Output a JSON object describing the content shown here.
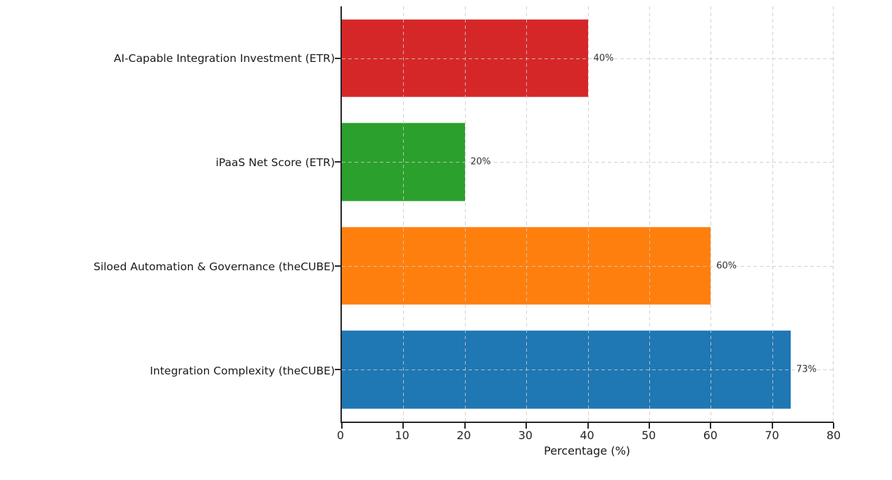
{
  "chart_data": {
    "type": "bar",
    "orientation": "horizontal",
    "title": "",
    "xlabel": "Percentage (%)",
    "ylabel": "",
    "xlim": [
      0,
      80
    ],
    "xticks": [
      0,
      10,
      20,
      30,
      40,
      50,
      60,
      70,
      80
    ],
    "grid": {
      "visible": true,
      "style": "dashed",
      "color": "#cccccc",
      "drawn_above_bars": true
    },
    "legend": null,
    "categories": [
      "AI-Capable Integration Investment (ETR)",
      "iPaaS Net Score (ETR)",
      "Siloed Automation & Governance (theCUBE)",
      "Integration Complexity (theCUBE)"
    ],
    "values": [
      40,
      20,
      60,
      73
    ],
    "bars": [
      {
        "category": "AI-Capable Integration Investment (ETR)",
        "value": 40,
        "label": "40%",
        "color": "#d62728"
      },
      {
        "category": "iPaaS Net Score (ETR)",
        "value": 20,
        "label": "20%",
        "color": "#2ca02c"
      },
      {
        "category": "Siloed Automation & Governance (theCUBE)",
        "value": 60,
        "label": "60%",
        "color": "#ff7f0e"
      },
      {
        "category": "Integration Complexity (theCUBE)",
        "value": 73,
        "label": "73%",
        "color": "#1f77b4"
      }
    ]
  }
}
